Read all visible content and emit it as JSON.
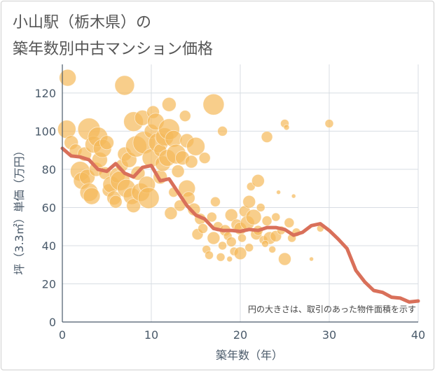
{
  "chart_data": {
    "type": "scatter",
    "title_line1": "小山駅（栃木県）の",
    "title_line2": "築年数別中古マンション価格",
    "xlabel": "築年数（年）",
    "ylabel": "坪（3.3㎡）単価（万円）",
    "xlim": [
      0,
      40
    ],
    "ylim": [
      0,
      135
    ],
    "xticks": [
      0,
      10,
      20,
      30,
      40
    ],
    "yticks": [
      0,
      20,
      40,
      60,
      80,
      100,
      120
    ],
    "grid": true,
    "note": "円の大きさは、取引のあった物件面積を示す",
    "colors": {
      "bubble": "#f5b95a",
      "line": "#d9705a",
      "axis_text": "#4a5a6a",
      "grid": "#d8dde3"
    },
    "bubbles": [
      [
        0.6,
        128,
        12
      ],
      [
        0.5,
        101,
        13
      ],
      [
        1,
        94,
        10
      ],
      [
        1.5,
        90,
        9
      ],
      [
        2,
        79,
        14
      ],
      [
        2.2,
        74,
        12
      ],
      [
        2.5,
        88,
        10
      ],
      [
        2.8,
        76,
        11
      ],
      [
        3,
        101,
        16
      ],
      [
        3,
        68,
        13
      ],
      [
        3.3,
        66,
        12
      ],
      [
        3.5,
        93,
        12
      ],
      [
        3.8,
        80,
        10
      ],
      [
        4,
        97,
        14
      ],
      [
        4.2,
        85,
        11
      ],
      [
        4.5,
        91,
        13
      ],
      [
        4.8,
        78,
        9
      ],
      [
        5,
        94,
        10
      ],
      [
        5.2,
        69,
        9
      ],
      [
        5.5,
        72,
        12
      ],
      [
        5.8,
        65,
        10
      ],
      [
        6,
        63,
        9
      ],
      [
        6.2,
        77,
        11
      ],
      [
        6.5,
        74,
        14
      ],
      [
        6.7,
        82,
        9
      ],
      [
        7,
        124,
        14
      ],
      [
        7,
        88,
        10
      ],
      [
        7.2,
        70,
        13
      ],
      [
        7.5,
        85,
        11
      ],
      [
        7.8,
        66,
        12
      ],
      [
        8,
        61,
        10
      ],
      [
        8,
        105,
        14
      ],
      [
        8.3,
        92,
        15
      ],
      [
        8.5,
        78,
        10
      ],
      [
        8.8,
        68,
        13
      ],
      [
        9,
        107,
        11
      ],
      [
        9.2,
        94,
        16
      ],
      [
        9.5,
        72,
        12
      ],
      [
        9.7,
        65,
        15
      ],
      [
        10,
        100,
        10
      ],
      [
        10,
        86,
        13
      ],
      [
        10.2,
        110,
        9
      ],
      [
        10.5,
        105,
        12
      ],
      [
        10.8,
        94,
        14
      ],
      [
        11,
        76,
        10
      ],
      [
        11,
        90,
        9
      ],
      [
        11.3,
        83,
        11
      ],
      [
        11.5,
        97,
        13
      ],
      [
        11.8,
        86,
        12
      ],
      [
        12,
        114,
        10
      ],
      [
        12,
        101,
        15
      ],
      [
        12.2,
        57,
        9
      ],
      [
        12.5,
        96,
        12
      ],
      [
        12.8,
        88,
        14
      ],
      [
        13,
        79,
        9
      ],
      [
        13.2,
        61,
        8
      ],
      [
        13.5,
        86,
        10
      ],
      [
        13.8,
        108,
        8
      ],
      [
        14,
        95,
        10
      ],
      [
        14,
        70,
        12
      ],
      [
        14.2,
        65,
        9
      ],
      [
        14.5,
        84,
        9
      ],
      [
        14.8,
        59,
        9
      ],
      [
        15,
        92,
        13
      ],
      [
        15.2,
        46,
        8
      ],
      [
        15.5,
        54,
        8
      ],
      [
        15.8,
        49,
        7
      ],
      [
        16,
        86,
        8
      ],
      [
        16.2,
        38,
        6
      ],
      [
        16.5,
        35,
        6
      ],
      [
        16.8,
        55,
        7
      ],
      [
        17,
        114,
        15
      ],
      [
        17,
        44,
        9
      ],
      [
        17.2,
        63,
        7
      ],
      [
        17.5,
        50,
        7
      ],
      [
        17.8,
        34,
        6
      ],
      [
        18,
        100,
        7
      ],
      [
        18,
        40,
        6
      ],
      [
        18.3,
        48,
        8
      ],
      [
        18.6,
        45,
        6
      ],
      [
        19,
        56,
        9
      ],
      [
        19,
        42,
        7
      ],
      [
        19.3,
        37,
        6
      ],
      [
        19.6,
        51,
        8
      ],
      [
        20,
        49,
        9
      ],
      [
        20,
        36,
        9
      ],
      [
        20.2,
        44,
        6
      ],
      [
        20.5,
        58,
        8
      ],
      [
        20.8,
        52,
        10
      ],
      [
        21,
        63,
        9
      ],
      [
        21,
        39,
        6
      ],
      [
        21.2,
        71,
        6
      ],
      [
        21.5,
        55,
        11
      ],
      [
        21.8,
        46,
        8
      ],
      [
        22,
        74,
        9
      ],
      [
        22,
        48,
        7
      ],
      [
        22.3,
        60,
        6
      ],
      [
        22.6,
        43,
        6
      ],
      [
        23,
        97,
        8
      ],
      [
        23,
        53,
        7
      ],
      [
        23.3,
        44,
        9
      ],
      [
        23.6,
        38,
        5
      ],
      [
        24,
        55,
        6
      ],
      [
        24,
        45,
        8
      ],
      [
        24.3,
        68,
        3
      ],
      [
        24.6,
        48,
        6
      ],
      [
        25,
        104,
        6
      ],
      [
        25,
        33,
        9
      ],
      [
        25.2,
        102,
        4
      ],
      [
        25.5,
        52,
        7
      ],
      [
        25.8,
        44,
        6
      ],
      [
        26,
        66,
        3
      ],
      [
        26.3,
        47,
        6
      ],
      [
        28,
        33,
        3
      ],
      [
        29,
        49,
        5
      ],
      [
        30,
        104,
        6
      ],
      [
        12.5,
        68,
        7
      ],
      [
        18.8,
        33,
        4
      ],
      [
        22.8,
        41,
        5
      ]
    ],
    "trend": [
      [
        0,
        91
      ],
      [
        1,
        87
      ],
      [
        2,
        86.5
      ],
      [
        3,
        85
      ],
      [
        4,
        80
      ],
      [
        5,
        79
      ],
      [
        6,
        83
      ],
      [
        7,
        78
      ],
      [
        8,
        76
      ],
      [
        9,
        81
      ],
      [
        10,
        82
      ],
      [
        11,
        74
      ],
      [
        12,
        75
      ],
      [
        13,
        68
      ],
      [
        14,
        61
      ],
      [
        15,
        56
      ],
      [
        16,
        54
      ],
      [
        17,
        49
      ],
      [
        18,
        48
      ],
      [
        19,
        48
      ],
      [
        20,
        47.5
      ],
      [
        21,
        48.5
      ],
      [
        22,
        48
      ],
      [
        23,
        49.5
      ],
      [
        24,
        49.5
      ],
      [
        25,
        48.5
      ],
      [
        26,
        45.5
      ],
      [
        27,
        47
      ],
      [
        28,
        50.5
      ],
      [
        29,
        51.5
      ],
      [
        30,
        48
      ],
      [
        31,
        43.5
      ],
      [
        32,
        38.5
      ],
      [
        33,
        27
      ],
      [
        34,
        21
      ],
      [
        35,
        16.5
      ],
      [
        36,
        15.5
      ],
      [
        37,
        13
      ],
      [
        38,
        12.5
      ],
      [
        39,
        10.5
      ],
      [
        40,
        11
      ]
    ]
  }
}
